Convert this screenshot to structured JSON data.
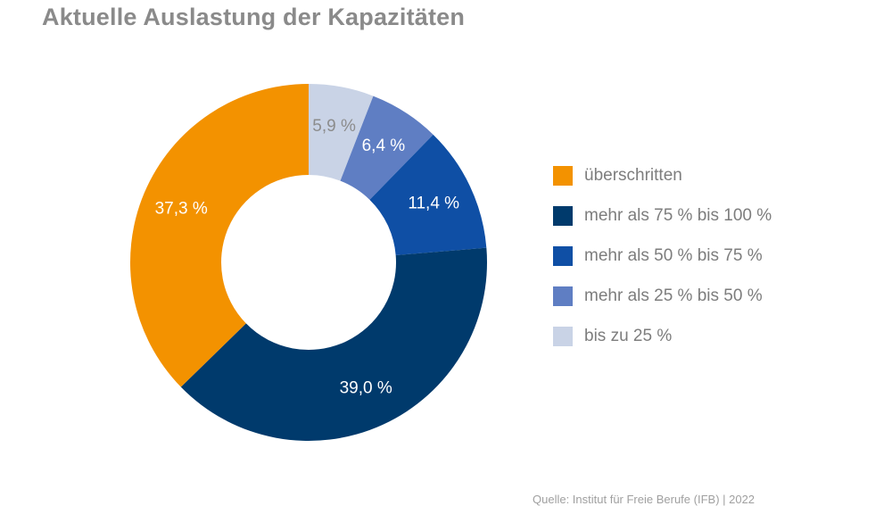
{
  "chart_data": {
    "type": "pie",
    "title": "Aktuelle Auslastung der Kapazitäten",
    "start_angle_deg": 0,
    "direction": "clockwise",
    "slices": [
      {
        "label": "bis zu 25 %",
        "value": 5.9,
        "display": "5,9 %",
        "color": "#c9d3e6",
        "text_color": "#8c8c8c"
      },
      {
        "label": "mehr als 25 % bis 50 %",
        "value": 6.4,
        "display": "6,4 %",
        "color": "#5f7ec3",
        "text_color": "#ffffff"
      },
      {
        "label": "mehr als 50 % bis 75 %",
        "value": 11.4,
        "display": "11,4 %",
        "color": "#0f4fa5",
        "text_color": "#ffffff"
      },
      {
        "label": "mehr als 75 % bis 100 %",
        "value": 39.0,
        "display": "39,0 %",
        "color": "#003a6c",
        "text_color": "#ffffff"
      },
      {
        "label": "überschritten",
        "value": 37.3,
        "display": "37,3 %",
        "color": "#f39200",
        "text_color": "#ffffff"
      }
    ],
    "legend_placement": "right",
    "legend_order": [
      "überschritten",
      "mehr als 75 % bis 100 %",
      "mehr als 50 % bis 75 %",
      "mehr als 25 % bis 50 %",
      "bis zu 25 %"
    ]
  },
  "source": "Quelle: Institut für Freie Berufe (IFB) | 2022"
}
